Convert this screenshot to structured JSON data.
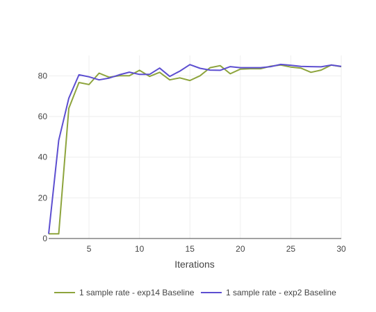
{
  "chart_data": {
    "type": "line",
    "title": "",
    "xlabel": "Iterations",
    "ylabel": "",
    "xlim": [
      1,
      30
    ],
    "ylim": [
      0,
      90
    ],
    "x_ticks": [
      5,
      10,
      15,
      20,
      25,
      30
    ],
    "y_ticks": [
      0,
      20,
      40,
      60,
      80
    ],
    "grid": true,
    "legend_position": "bottom",
    "x": [
      1,
      2,
      3,
      4,
      5,
      6,
      7,
      8,
      9,
      10,
      11,
      12,
      13,
      14,
      15,
      16,
      17,
      18,
      19,
      20,
      21,
      22,
      23,
      24,
      25,
      26,
      27,
      28,
      29,
      30
    ],
    "series": [
      {
        "name": "1 sample rate - exp14 Baseline",
        "color": "#8da43c",
        "values": [
          2.3,
          2.3,
          64,
          76.7,
          75.7,
          81.3,
          79.3,
          80,
          80,
          82.7,
          79.7,
          81.7,
          78,
          79,
          77.7,
          80,
          84,
          85,
          81,
          83.3,
          83.5,
          83.5,
          84.7,
          85.3,
          84.3,
          83.8,
          81.7,
          82.8,
          85.3,
          84.5
        ]
      },
      {
        "name": "1 sample rate - exp2 Baseline",
        "color": "#5c4ed0",
        "values": [
          2.3,
          48.3,
          69,
          80.5,
          79.5,
          78,
          78.9,
          80.5,
          81.8,
          80.7,
          80.7,
          83.8,
          79.7,
          82.3,
          85.5,
          83.7,
          82.8,
          82.7,
          84.5,
          84,
          84,
          84,
          84.5,
          85.6,
          85.2,
          84.6,
          84.5,
          84.4,
          85.3,
          84.6
        ]
      }
    ]
  }
}
